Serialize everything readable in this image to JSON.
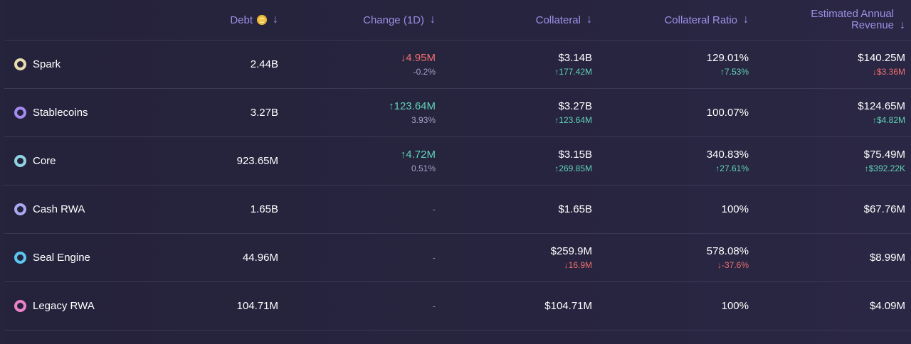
{
  "columns": {
    "debt": "Debt",
    "change": "Change (1D)",
    "collateral": "Collateral",
    "ratio": "Collateral Ratio",
    "revenue_line1": "Estimated Annual",
    "revenue_line2": "Revenue",
    "sort_arrow": "↓"
  },
  "rows": [
    {
      "name": "Spark",
      "ring_color": "#e9dcb0",
      "debt": "2.44B",
      "change_primary": "↓4.95M",
      "change_primary_dir": "down",
      "change_secondary": "-0.2%",
      "collateral": "$3.14B",
      "collateral_change": "↑177.42M",
      "collateral_change_dir": "up",
      "ratio": "129.01%",
      "ratio_change": "↑7.53%",
      "ratio_change_dir": "up",
      "revenue": "$140.25M",
      "revenue_change": "↓$3.36M",
      "revenue_change_dir": "down"
    },
    {
      "name": "Stablecoins",
      "ring_color": "#a58af0",
      "debt": "3.27B",
      "change_primary": "↑123.64M",
      "change_primary_dir": "up",
      "change_secondary": "3.93%",
      "collateral": "$3.27B",
      "collateral_change": "↑123.64M",
      "collateral_change_dir": "up",
      "ratio": "100.07%",
      "ratio_change": "",
      "ratio_change_dir": "",
      "revenue": "$124.65M",
      "revenue_change": "↑$4.82M",
      "revenue_change_dir": "up"
    },
    {
      "name": "Core",
      "ring_color": "#8fd3e3",
      "debt": "923.65M",
      "change_primary": "↑4.72M",
      "change_primary_dir": "up",
      "change_secondary": "0.51%",
      "collateral": "$3.15B",
      "collateral_change": "↑269.85M",
      "collateral_change_dir": "up",
      "ratio": "340.83%",
      "ratio_change": "↑27.61%",
      "ratio_change_dir": "up",
      "revenue": "$75.49M",
      "revenue_change": "↑$392.22K",
      "revenue_change_dir": "up"
    },
    {
      "name": "Cash RWA",
      "ring_color": "#a9a9ef",
      "debt": "1.65B",
      "change_primary": "-",
      "change_primary_dir": "dash",
      "change_secondary": "",
      "collateral": "$1.65B",
      "collateral_change": "",
      "collateral_change_dir": "",
      "ratio": "100%",
      "ratio_change": "",
      "ratio_change_dir": "",
      "revenue": "$67.76M",
      "revenue_change": "",
      "revenue_change_dir": ""
    },
    {
      "name": "Seal Engine",
      "ring_color": "#5bc6ee",
      "debt": "44.96M",
      "change_primary": "-",
      "change_primary_dir": "dash",
      "change_secondary": "",
      "collateral": "$259.9M",
      "collateral_change": "↓16.9M",
      "collateral_change_dir": "down",
      "ratio": "578.08%",
      "ratio_change": "↓-37.6%",
      "ratio_change_dir": "down",
      "revenue": "$8.99M",
      "revenue_change": "",
      "revenue_change_dir": ""
    },
    {
      "name": "Legacy RWA",
      "ring_color": "#e982c9",
      "debt": "104.71M",
      "change_primary": "-",
      "change_primary_dir": "dash",
      "change_secondary": "",
      "collateral": "$104.71M",
      "collateral_change": "",
      "collateral_change_dir": "",
      "ratio": "100%",
      "ratio_change": "",
      "ratio_change_dir": "",
      "revenue": "$4.09M",
      "revenue_change": "",
      "revenue_change_dir": ""
    }
  ]
}
